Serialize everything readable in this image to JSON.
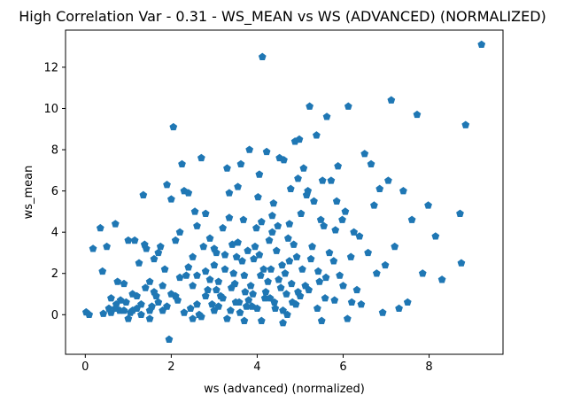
{
  "chart_data": {
    "type": "scatter",
    "title": "High Correlation Var - 0.31 - WS_MEAN vs WS (ADVANCED) (NORMALIZED)",
    "xlabel": "ws (advanced) (normalized)",
    "ylabel": "ws_mean",
    "xlim": [
      -0.46,
      9.72
    ],
    "ylim": [
      -1.92,
      13.8
    ],
    "xticks": [
      0,
      2,
      4,
      6,
      8
    ],
    "yticks": [
      0,
      2,
      4,
      6,
      8,
      10,
      12
    ],
    "grid": false,
    "legend": "none",
    "marker": "pentagon",
    "color": "#1f77b4",
    "series": [
      {
        "points": [
          [
            0.02,
            0.12
          ],
          [
            0.09,
            0.0
          ],
          [
            0.18,
            3.2
          ],
          [
            0.35,
            4.2
          ],
          [
            0.4,
            2.1
          ],
          [
            0.42,
            0.05
          ],
          [
            0.5,
            3.3
          ],
          [
            0.55,
            0.3
          ],
          [
            0.6,
            0.8
          ],
          [
            0.7,
            4.4
          ],
          [
            0.72,
            0.5
          ],
          [
            0.75,
            1.6
          ],
          [
            0.8,
            0.2
          ],
          [
            0.82,
            0.7
          ],
          [
            0.9,
            1.5
          ],
          [
            0.95,
            0.6
          ],
          [
            1.0,
            3.6
          ],
          [
            1.05,
            0.1
          ],
          [
            1.1,
            1.0
          ],
          [
            1.15,
            3.6
          ],
          [
            1.2,
            0.3
          ],
          [
            1.25,
            2.5
          ],
          [
            1.3,
            0.0
          ],
          [
            1.35,
            5.8
          ],
          [
            1.38,
            3.4
          ],
          [
            1.42,
            3.2
          ],
          [
            1.5,
            1.6
          ],
          [
            1.55,
            0.4
          ],
          [
            1.6,
            2.7
          ],
          [
            1.65,
            0.9
          ],
          [
            1.7,
            3.0
          ],
          [
            1.75,
            3.3
          ],
          [
            1.8,
            0.2
          ],
          [
            1.85,
            2.2
          ],
          [
            1.9,
            6.3
          ],
          [
            1.95,
            -1.2
          ],
          [
            2.0,
            5.6
          ],
          [
            2.05,
            9.1
          ],
          [
            2.1,
            3.6
          ],
          [
            2.15,
            0.7
          ],
          [
            2.2,
            4.0
          ],
          [
            2.25,
            7.3
          ],
          [
            2.3,
            6.0
          ],
          [
            2.35,
            1.9
          ],
          [
            2.4,
            5.9
          ],
          [
            2.45,
            0.3
          ],
          [
            2.5,
            2.8
          ],
          [
            2.55,
            5.0
          ],
          [
            2.6,
            4.3
          ],
          [
            2.65,
            0.0
          ],
          [
            2.7,
            7.6
          ],
          [
            2.75,
            3.3
          ],
          [
            2.8,
            4.9
          ],
          [
            2.85,
            1.2
          ],
          [
            2.9,
            3.7
          ],
          [
            2.95,
            0.5
          ],
          [
            3.0,
            2.4
          ],
          [
            3.05,
            3.0
          ],
          [
            3.1,
            1.6
          ],
          [
            3.15,
            0.9
          ],
          [
            3.2,
            4.2
          ],
          [
            3.25,
            2.2
          ],
          [
            3.3,
            7.1
          ],
          [
            3.35,
            5.9
          ],
          [
            3.38,
            0.2
          ],
          [
            3.42,
            3.4
          ],
          [
            3.48,
            1.5
          ],
          [
            3.52,
            2.8
          ],
          [
            3.58,
            0.6
          ],
          [
            3.62,
            7.3
          ],
          [
            3.68,
            4.6
          ],
          [
            3.72,
            1.1
          ],
          [
            3.78,
            3.1
          ],
          [
            3.82,
            8.0
          ],
          [
            3.88,
            0.4
          ],
          [
            3.92,
            2.7
          ],
          [
            3.98,
            4.2
          ],
          [
            4.02,
            5.7
          ],
          [
            4.08,
            1.9
          ],
          [
            4.12,
            12.5
          ],
          [
            4.18,
            0.8
          ],
          [
            4.22,
            7.9
          ],
          [
            4.28,
            3.6
          ],
          [
            4.32,
            2.2
          ],
          [
            4.38,
            5.4
          ],
          [
            4.42,
            0.3
          ],
          [
            4.48,
            4.3
          ],
          [
            4.52,
            7.6
          ],
          [
            4.58,
            2.4
          ],
          [
            4.62,
            7.5
          ],
          [
            4.68,
            1.0
          ],
          [
            4.72,
            3.7
          ],
          [
            4.78,
            6.1
          ],
          [
            4.82,
            0.6
          ],
          [
            4.88,
            8.4
          ],
          [
            4.92,
            2.8
          ],
          [
            4.98,
            8.5
          ],
          [
            5.02,
            4.9
          ],
          [
            5.08,
            7.1
          ],
          [
            5.12,
            1.4
          ],
          [
            5.18,
            6.0
          ],
          [
            5.22,
            10.1
          ],
          [
            5.28,
            3.3
          ],
          [
            5.32,
            5.5
          ],
          [
            5.38,
            8.7
          ],
          [
            5.42,
            2.1
          ],
          [
            5.48,
            4.6
          ],
          [
            5.52,
            6.5
          ],
          [
            5.58,
            0.8
          ],
          [
            5.62,
            9.6
          ],
          [
            5.68,
            3.0
          ],
          [
            5.72,
            6.5
          ],
          [
            5.78,
            2.6
          ],
          [
            5.82,
            4.1
          ],
          [
            5.88,
            7.2
          ],
          [
            5.92,
            1.9
          ],
          [
            5.98,
            4.6
          ],
          [
            6.05,
            5.0
          ],
          [
            6.12,
            10.1
          ],
          [
            6.18,
            2.8
          ],
          [
            6.25,
            4.0
          ],
          [
            6.32,
            1.2
          ],
          [
            6.38,
            3.8
          ],
          [
            6.42,
            0.5
          ],
          [
            6.5,
            7.8
          ],
          [
            6.58,
            3.0
          ],
          [
            6.65,
            7.3
          ],
          [
            6.72,
            5.3
          ],
          [
            6.78,
            2.0
          ],
          [
            6.85,
            6.1
          ],
          [
            6.92,
            0.1
          ],
          [
            6.98,
            2.4
          ],
          [
            7.05,
            6.5
          ],
          [
            7.12,
            10.4
          ],
          [
            7.2,
            3.3
          ],
          [
            7.3,
            0.3
          ],
          [
            7.4,
            6.0
          ],
          [
            7.5,
            0.6
          ],
          [
            7.6,
            4.6
          ],
          [
            7.72,
            9.7
          ],
          [
            7.85,
            2.0
          ],
          [
            7.98,
            5.3
          ],
          [
            8.15,
            3.8
          ],
          [
            8.3,
            1.7
          ],
          [
            8.72,
            4.9
          ],
          [
            8.75,
            2.5
          ],
          [
            8.85,
            9.2
          ],
          [
            9.22,
            13.1
          ],
          [
            2.6,
            0.5
          ],
          [
            2.8,
            0.9
          ],
          [
            3.0,
            0.2
          ],
          [
            3.2,
            0.8
          ],
          [
            3.4,
            1.3
          ],
          [
            3.6,
            0.1
          ],
          [
            3.8,
            0.7
          ],
          [
            4.0,
            0.3
          ],
          [
            4.2,
            1.1
          ],
          [
            4.4,
            0.6
          ],
          [
            4.6,
            0.2
          ],
          [
            4.8,
            1.5
          ],
          [
            5.0,
            0.9
          ],
          [
            3.1,
            0.4
          ],
          [
            3.3,
            -0.2
          ],
          [
            3.5,
            0.6
          ],
          [
            3.7,
            1.9
          ],
          [
            3.9,
            1.0
          ],
          [
            4.1,
            -0.3
          ],
          [
            4.3,
            0.8
          ],
          [
            4.5,
            1.7
          ],
          [
            4.7,
            0.0
          ],
          [
            4.9,
            0.5
          ],
          [
            2.9,
            1.7
          ],
          [
            2.7,
            -0.1
          ],
          [
            2.5,
            1.4
          ],
          [
            2.3,
            0.1
          ],
          [
            2.1,
            0.9
          ],
          [
            1.9,
            0.4
          ],
          [
            1.7,
            0.6
          ],
          [
            1.5,
            0.2
          ],
          [
            1.3,
            0.5
          ],
          [
            1.1,
            0.2
          ],
          [
            5.2,
            1.2
          ],
          [
            5.4,
            0.3
          ],
          [
            5.6,
            1.8
          ],
          [
            5.8,
            0.7
          ],
          [
            6.0,
            1.4
          ],
          [
            6.2,
            0.6
          ],
          [
            3.45,
            2.0
          ],
          [
            3.65,
            2.6
          ],
          [
            3.85,
            1.4
          ],
          [
            4.05,
            2.9
          ],
          [
            4.25,
            1.6
          ],
          [
            4.45,
            3.1
          ],
          [
            4.65,
            2.0
          ],
          [
            4.85,
            3.4
          ],
          [
            5.05,
            2.2
          ],
          [
            5.25,
            2.7
          ],
          [
            5.45,
            1.6
          ],
          [
            3.05,
            1.2
          ],
          [
            3.25,
            2.9
          ],
          [
            3.55,
            3.5
          ],
          [
            3.75,
            0.4
          ],
          [
            3.95,
            3.3
          ],
          [
            4.15,
            2.2
          ],
          [
            4.35,
            4.0
          ],
          [
            4.55,
            1.3
          ],
          [
            4.75,
            2.6
          ],
          [
            4.95,
            1.1
          ],
          [
            2.2,
            1.8
          ],
          [
            2.4,
            2.3
          ],
          [
            2.6,
            1.9
          ],
          [
            2.8,
            2.1
          ],
          [
            3.0,
            3.2
          ],
          [
            1.6,
            1.1
          ],
          [
            1.8,
            1.4
          ],
          [
            2.0,
            1.0
          ],
          [
            1.4,
            1.3
          ],
          [
            1.2,
            0.9
          ],
          [
            0.6,
            0.1
          ],
          [
            0.9,
            0.2
          ],
          [
            1.0,
            -0.2
          ],
          [
            0.7,
            0.3
          ],
          [
            1.5,
            -0.2
          ],
          [
            2.5,
            -0.2
          ],
          [
            3.7,
            -0.3
          ],
          [
            4.6,
            -0.4
          ],
          [
            5.5,
            -0.3
          ],
          [
            6.1,
            -0.2
          ],
          [
            3.35,
            4.7
          ],
          [
            4.1,
            4.5
          ],
          [
            4.35,
            4.8
          ],
          [
            4.75,
            4.4
          ],
          [
            5.15,
            5.8
          ],
          [
            5.55,
            4.3
          ],
          [
            5.85,
            5.5
          ],
          [
            4.05,
            6.8
          ],
          [
            3.55,
            6.2
          ],
          [
            4.95,
            6.6
          ]
        ]
      }
    ]
  }
}
